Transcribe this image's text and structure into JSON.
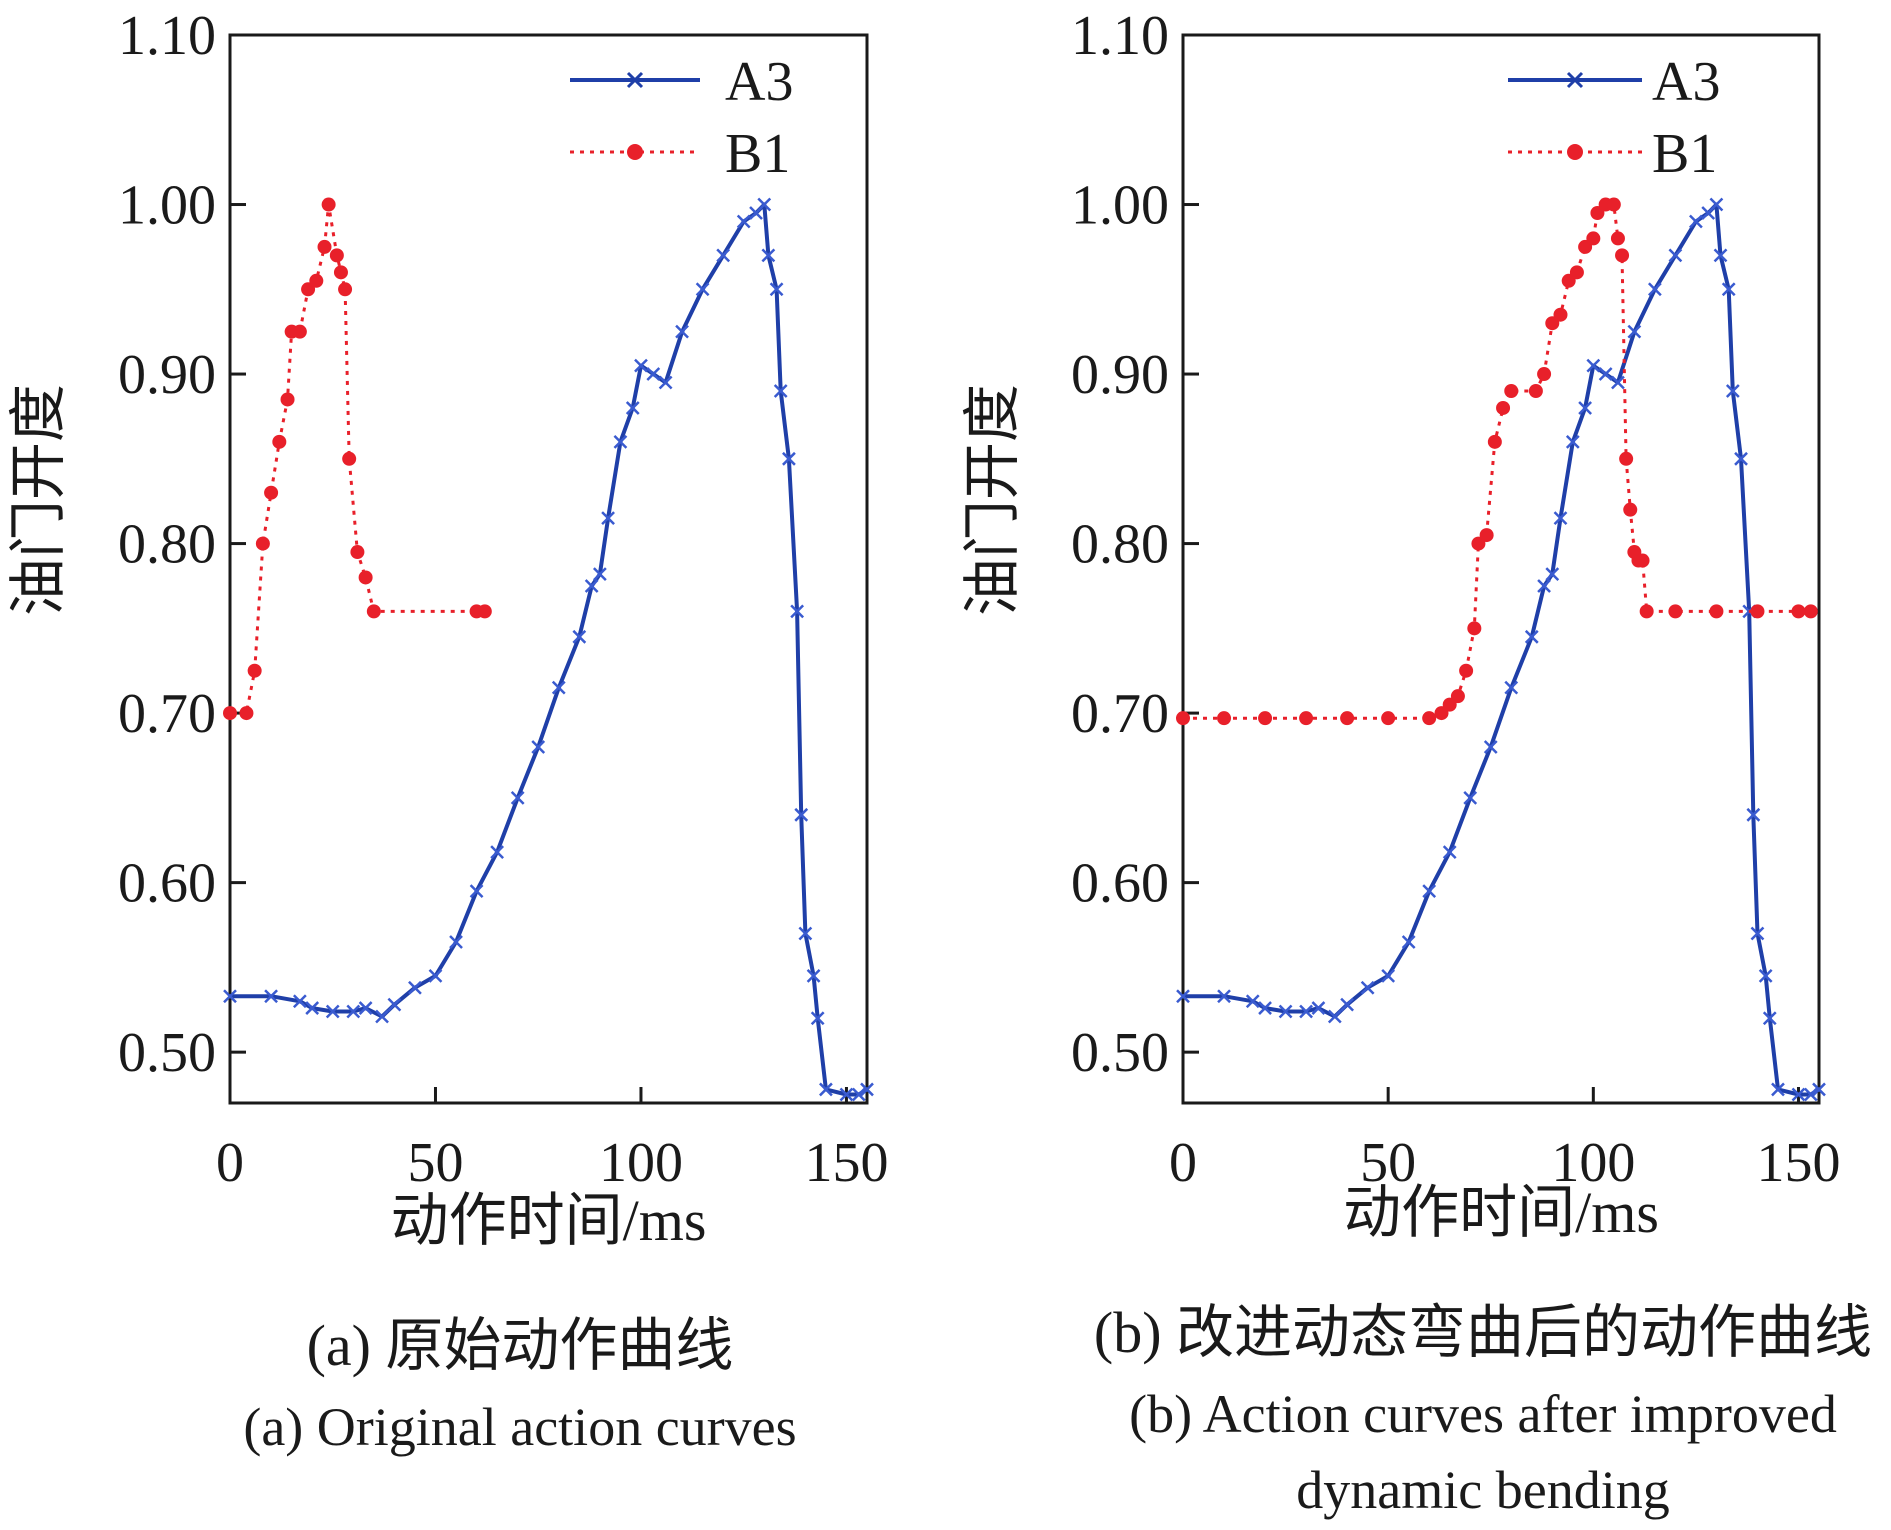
{
  "chart_data": [
    {
      "type": "line",
      "caption_cn": "(a) 原始动作曲线",
      "caption_en": "(a) Original action curves",
      "xlabel": "动作时间/ms",
      "ylabel": "油门开度",
      "xlim": [
        0,
        155
      ],
      "ylim": [
        0.47,
        1.1
      ],
      "xticks": [
        0,
        50,
        100,
        150
      ],
      "yticks": [
        0.5,
        0.6,
        0.7,
        0.8,
        0.9,
        1.0,
        1.1
      ],
      "xtick_labels": [
        "0",
        "50",
        "100",
        "150"
      ],
      "ytick_labels": [
        "0.50",
        "0.60",
        "0.70",
        "0.80",
        "0.90",
        "1.00",
        "1.10"
      ],
      "legend_position": "top-right",
      "series": [
        {
          "name": "A3",
          "color": "#1f3fa8",
          "style": "solid line with x markers",
          "points": [
            [
              0,
              0.533
            ],
            [
              10,
              0.533
            ],
            [
              17,
              0.53
            ],
            [
              20,
              0.526
            ],
            [
              25,
              0.524
            ],
            [
              30,
              0.524
            ],
            [
              33,
              0.526
            ],
            [
              37,
              0.521
            ],
            [
              40,
              0.528
            ],
            [
              45,
              0.538
            ],
            [
              50,
              0.545
            ],
            [
              55,
              0.565
            ],
            [
              60,
              0.595
            ],
            [
              65,
              0.618
            ],
            [
              70,
              0.65
            ],
            [
              75,
              0.68
            ],
            [
              80,
              0.715
            ],
            [
              85,
              0.745
            ],
            [
              88,
              0.775
            ],
            [
              90,
              0.782
            ],
            [
              92,
              0.815
            ],
            [
              95,
              0.86
            ],
            [
              98,
              0.88
            ],
            [
              100,
              0.905
            ],
            [
              103,
              0.9
            ],
            [
              106,
              0.895
            ],
            [
              110,
              0.925
            ],
            [
              115,
              0.95
            ],
            [
              120,
              0.97
            ],
            [
              125,
              0.99
            ],
            [
              128,
              0.995
            ],
            [
              130,
              1.0
            ],
            [
              131,
              0.97
            ],
            [
              133,
              0.95
            ],
            [
              134,
              0.89
            ],
            [
              136,
              0.85
            ],
            [
              138,
              0.76
            ],
            [
              139,
              0.64
            ],
            [
              140,
              0.57
            ],
            [
              142,
              0.545
            ],
            [
              143,
              0.52
            ],
            [
              145,
              0.478
            ],
            [
              150,
              0.475
            ],
            [
              153,
              0.475
            ],
            [
              155,
              0.478
            ]
          ]
        },
        {
          "name": "B1",
          "color": "#e8202a",
          "style": "dotted line with filled circle markers",
          "points": [
            [
              0,
              0.7
            ],
            [
              4,
              0.7
            ],
            [
              6,
              0.725
            ],
            [
              8,
              0.8
            ],
            [
              10,
              0.83
            ],
            [
              12,
              0.86
            ],
            [
              14,
              0.885
            ],
            [
              15,
              0.925
            ],
            [
              17,
              0.925
            ],
            [
              19,
              0.95
            ],
            [
              21,
              0.955
            ],
            [
              23,
              0.975
            ],
            [
              24,
              1.0
            ],
            [
              26,
              0.97
            ],
            [
              27,
              0.96
            ],
            [
              28,
              0.95
            ],
            [
              29,
              0.85
            ],
            [
              31,
              0.795
            ],
            [
              33,
              0.78
            ],
            [
              35,
              0.76
            ],
            [
              60,
              0.76
            ],
            [
              62,
              0.76
            ]
          ]
        }
      ]
    },
    {
      "type": "line",
      "caption_cn": "(b) 改进动态弯曲后的动作曲线",
      "caption_en": "(b) Action curves after improved dynamic bending",
      "xlabel": "动作时间/ms",
      "ylabel": "油门开度",
      "xlim": [
        0,
        155
      ],
      "ylim": [
        0.47,
        1.1
      ],
      "xticks": [
        0,
        50,
        100,
        150
      ],
      "yticks": [
        0.5,
        0.6,
        0.7,
        0.8,
        0.9,
        1.0,
        1.1
      ],
      "xtick_labels": [
        "0",
        "50",
        "100",
        "150"
      ],
      "ytick_labels": [
        "0.50",
        "0.60",
        "0.70",
        "0.80",
        "0.90",
        "1.00",
        "1.10"
      ],
      "legend_position": "top-right",
      "series": [
        {
          "name": "A3",
          "color": "#1f3fa8",
          "style": "solid line with x markers",
          "points": [
            [
              0,
              0.533
            ],
            [
              10,
              0.533
            ],
            [
              17,
              0.53
            ],
            [
              20,
              0.526
            ],
            [
              25,
              0.524
            ],
            [
              30,
              0.524
            ],
            [
              33,
              0.526
            ],
            [
              37,
              0.521
            ],
            [
              40,
              0.528
            ],
            [
              45,
              0.538
            ],
            [
              50,
              0.545
            ],
            [
              55,
              0.565
            ],
            [
              60,
              0.595
            ],
            [
              65,
              0.618
            ],
            [
              70,
              0.65
            ],
            [
              75,
              0.68
            ],
            [
              80,
              0.715
            ],
            [
              85,
              0.745
            ],
            [
              88,
              0.775
            ],
            [
              90,
              0.782
            ],
            [
              92,
              0.815
            ],
            [
              95,
              0.86
            ],
            [
              98,
              0.88
            ],
            [
              100,
              0.905
            ],
            [
              103,
              0.9
            ],
            [
              106,
              0.895
            ],
            [
              110,
              0.925
            ],
            [
              115,
              0.95
            ],
            [
              120,
              0.97
            ],
            [
              125,
              0.99
            ],
            [
              128,
              0.995
            ],
            [
              130,
              1.0
            ],
            [
              131,
              0.97
            ],
            [
              133,
              0.95
            ],
            [
              134,
              0.89
            ],
            [
              136,
              0.85
            ],
            [
              138,
              0.76
            ],
            [
              139,
              0.64
            ],
            [
              140,
              0.57
            ],
            [
              142,
              0.545
            ],
            [
              143,
              0.52
            ],
            [
              145,
              0.478
            ],
            [
              150,
              0.475
            ],
            [
              153,
              0.475
            ],
            [
              155,
              0.478
            ]
          ]
        },
        {
          "name": "B1",
          "color": "#e8202a",
          "style": "dotted line with filled circle markers",
          "points": [
            [
              0,
              0.697
            ],
            [
              10,
              0.697
            ],
            [
              20,
              0.697
            ],
            [
              30,
              0.697
            ],
            [
              40,
              0.697
            ],
            [
              50,
              0.697
            ],
            [
              60,
              0.697
            ],
            [
              63,
              0.7
            ],
            [
              65,
              0.705
            ],
            [
              67,
              0.71
            ],
            [
              69,
              0.725
            ],
            [
              71,
              0.75
            ],
            [
              72,
              0.8
            ],
            [
              74,
              0.805
            ],
            [
              76,
              0.86
            ],
            [
              78,
              0.88
            ],
            [
              80,
              0.89
            ],
            [
              86,
              0.89
            ],
            [
              88,
              0.9
            ],
            [
              90,
              0.93
            ],
            [
              92,
              0.935
            ],
            [
              94,
              0.955
            ],
            [
              96,
              0.96
            ],
            [
              98,
              0.975
            ],
            [
              100,
              0.98
            ],
            [
              101,
              0.995
            ],
            [
              103,
              1.0
            ],
            [
              105,
              1.0
            ],
            [
              106,
              0.98
            ],
            [
              107,
              0.97
            ],
            [
              108,
              0.85
            ],
            [
              109,
              0.82
            ],
            [
              110,
              0.795
            ],
            [
              111,
              0.79
            ],
            [
              112,
              0.79
            ],
            [
              113,
              0.76
            ],
            [
              120,
              0.76
            ],
            [
              130,
              0.76
            ],
            [
              140,
              0.76
            ],
            [
              150,
              0.76
            ],
            [
              153,
              0.76
            ]
          ]
        }
      ]
    }
  ]
}
